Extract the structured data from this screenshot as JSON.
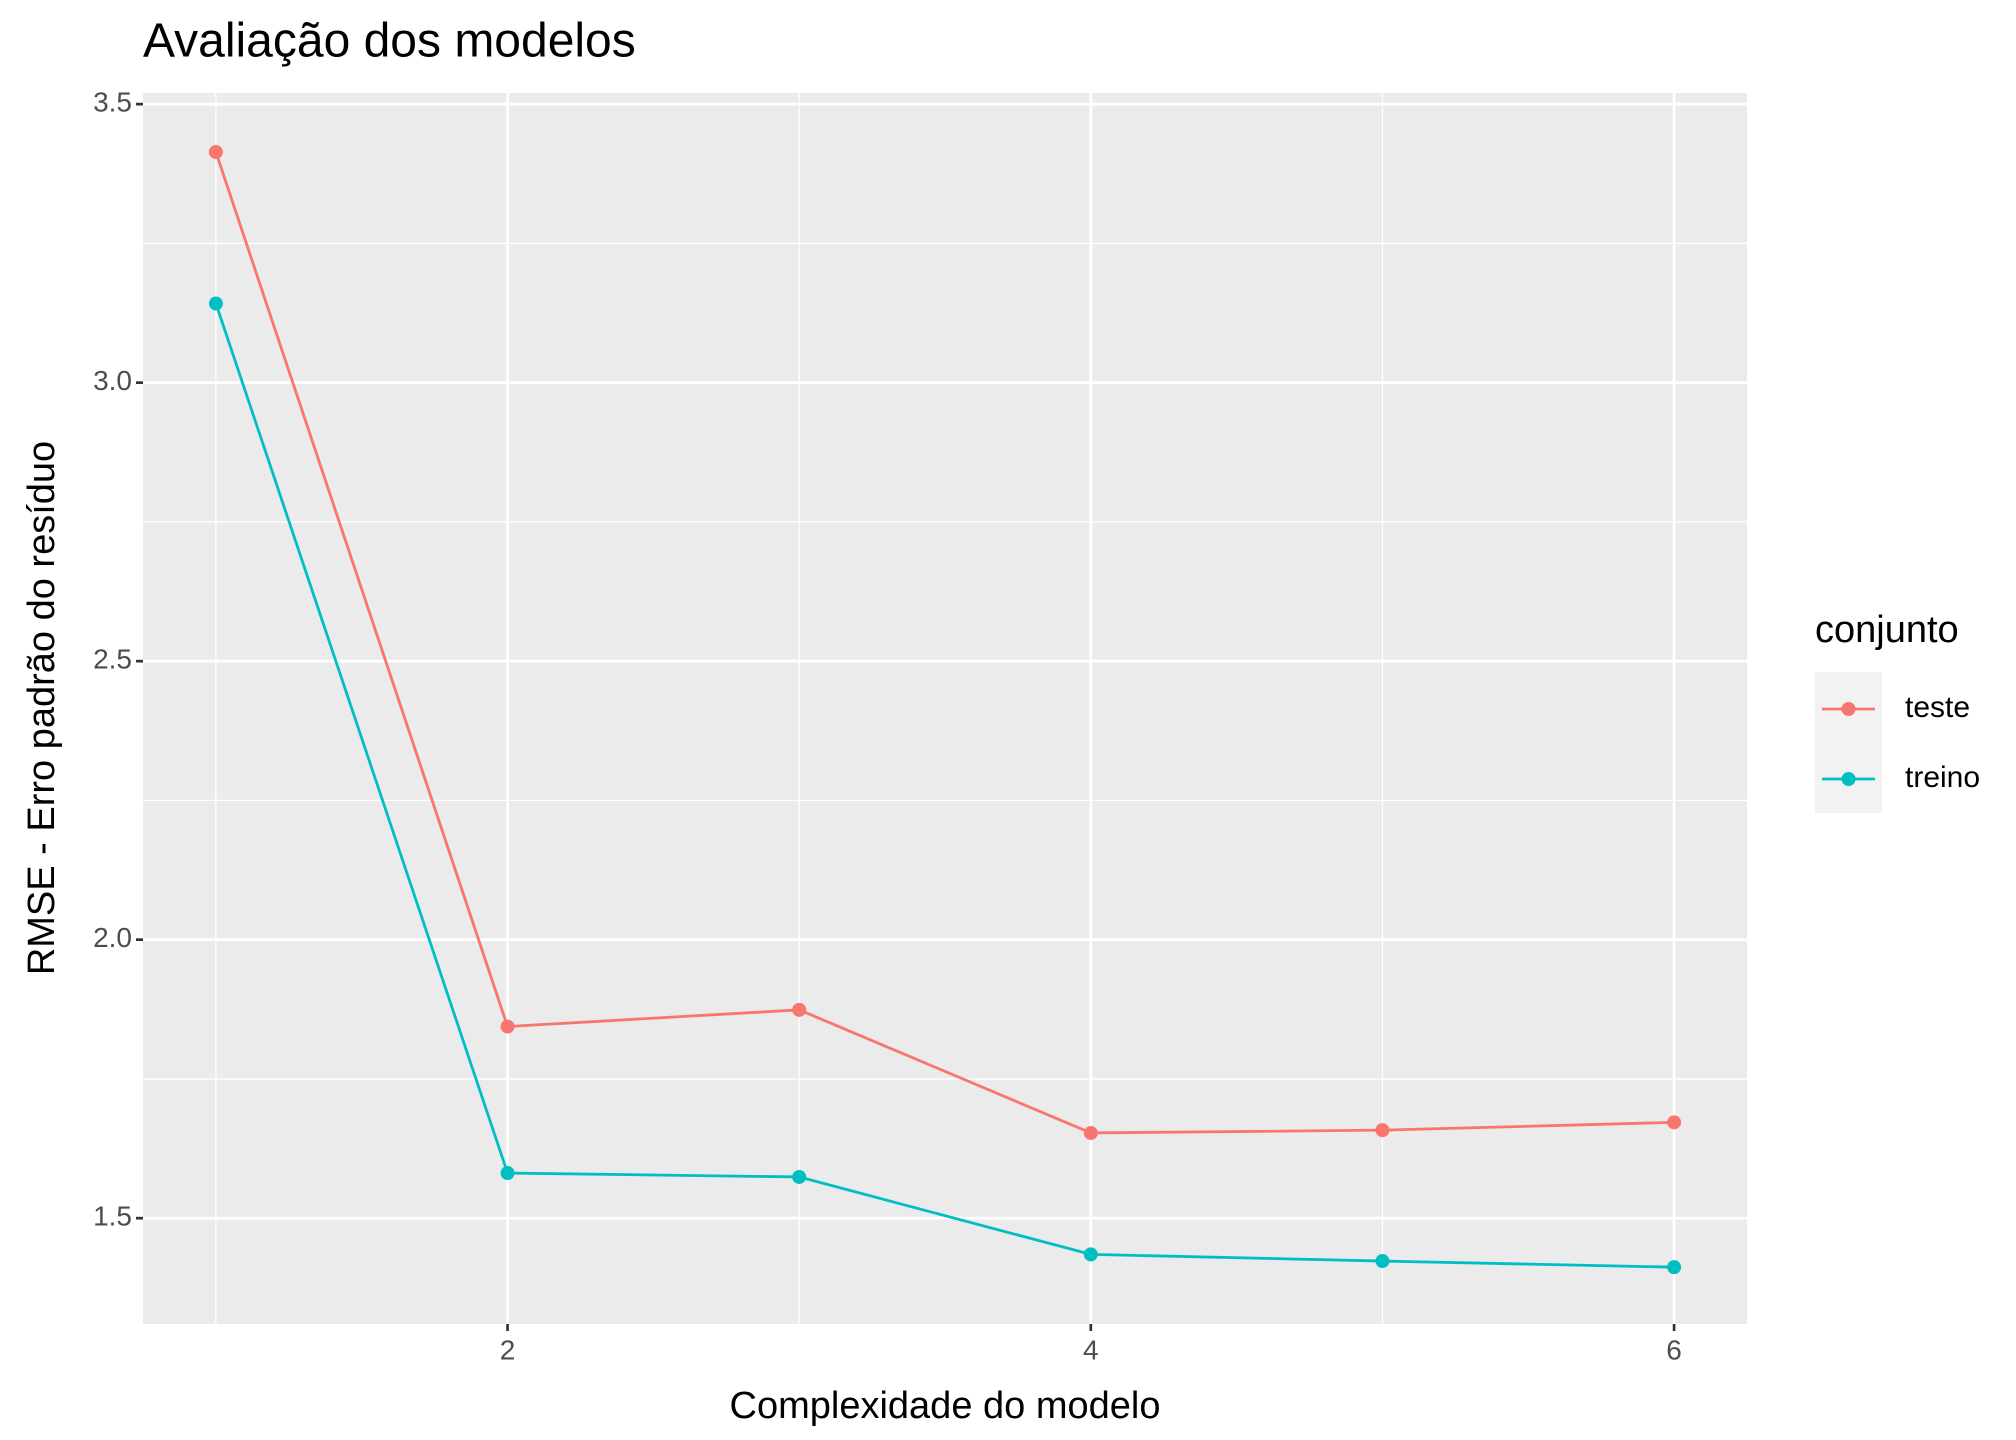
{
  "chart_data": {
    "type": "line",
    "title": "Avaliação dos modelos",
    "x_label": "Complexidade do modelo",
    "y_label": "RMSE - Erro padrão do resíduo",
    "x": [
      1,
      2,
      3,
      4,
      5,
      6
    ],
    "series": [
      {
        "name": "teste",
        "color": "#f8766d",
        "values": [
          3.414,
          1.844,
          1.874,
          1.653,
          1.658,
          1.672
        ]
      },
      {
        "name": "treino",
        "color": "#00bfc4",
        "values": [
          3.142,
          1.581,
          1.574,
          1.435,
          1.423,
          1.412
        ]
      }
    ],
    "legend_title": "conjunto",
    "xlim": [
      0.75,
      6.25
    ],
    "xticks": [
      2,
      4,
      6
    ],
    "ylim": [
      1.31,
      3.52
    ],
    "yticks": [
      1.5,
      {
        "value": 2,
        "label": "2.0"
      },
      2.5,
      {
        "value": 3,
        "label": "3.0"
      },
      3.5
    ],
    "grid": true,
    "legend": "right"
  }
}
